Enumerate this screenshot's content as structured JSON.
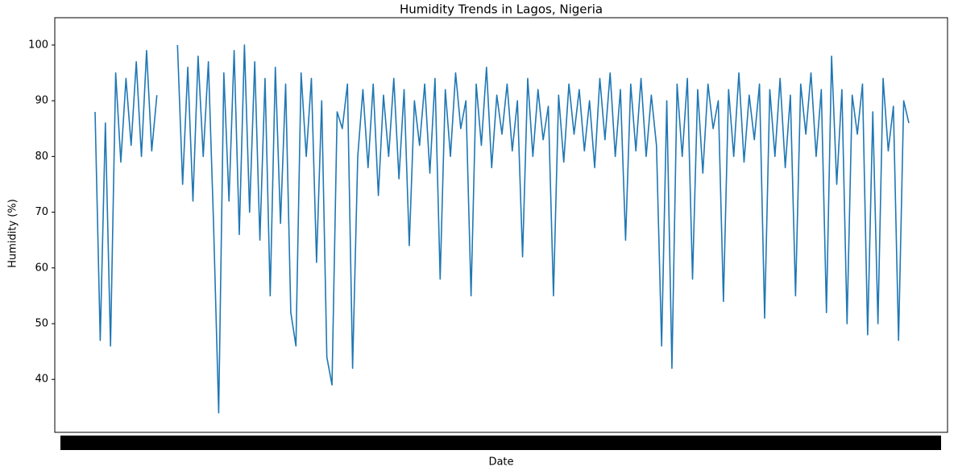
{
  "chart_data": {
    "type": "line",
    "title": "Humidity Trends in Lagos, Nigeria",
    "x_label": "Date",
    "y_label": "Humidity (%)",
    "color": "#1f77b4",
    "ylim": [
      30.5,
      104.9
    ],
    "yticks": [
      40,
      50,
      60,
      70,
      80,
      90,
      100
    ],
    "grid": false,
    "values": [
      88,
      47,
      86,
      46,
      95,
      79,
      94,
      82,
      97,
      80,
      99,
      81,
      91,
      null,
      null,
      null,
      100,
      75,
      96,
      72,
      98,
      80,
      97,
      68,
      34,
      95,
      72,
      99,
      66,
      100,
      70,
      97,
      65,
      94,
      55,
      96,
      68,
      93,
      52,
      46,
      95,
      80,
      94,
      61,
      90,
      44,
      39,
      88,
      85,
      93,
      42,
      80,
      92,
      78,
      93,
      73,
      91,
      80,
      94,
      76,
      92,
      64,
      90,
      82,
      93,
      77,
      94,
      58,
      92,
      80,
      95,
      85,
      90,
      55,
      93,
      82,
      96,
      78,
      91,
      84,
      93,
      81,
      90,
      62,
      94,
      80,
      92,
      83,
      89,
      55,
      91,
      79,
      93,
      84,
      92,
      81,
      90,
      78,
      94,
      83,
      95,
      80,
      92,
      65,
      93,
      81,
      94,
      80,
      91,
      82,
      46,
      90,
      42,
      93,
      80,
      94,
      58,
      92,
      77,
      93,
      85,
      90,
      54,
      92,
      80,
      95,
      79,
      91,
      83,
      93,
      51,
      92,
      80,
      94,
      78,
      91,
      55,
      93,
      84,
      95,
      80,
      92,
      52,
      98,
      75,
      92,
      50,
      91,
      84,
      93,
      48,
      88,
      50,
      94,
      81,
      89,
      47,
      90,
      86
    ]
  }
}
